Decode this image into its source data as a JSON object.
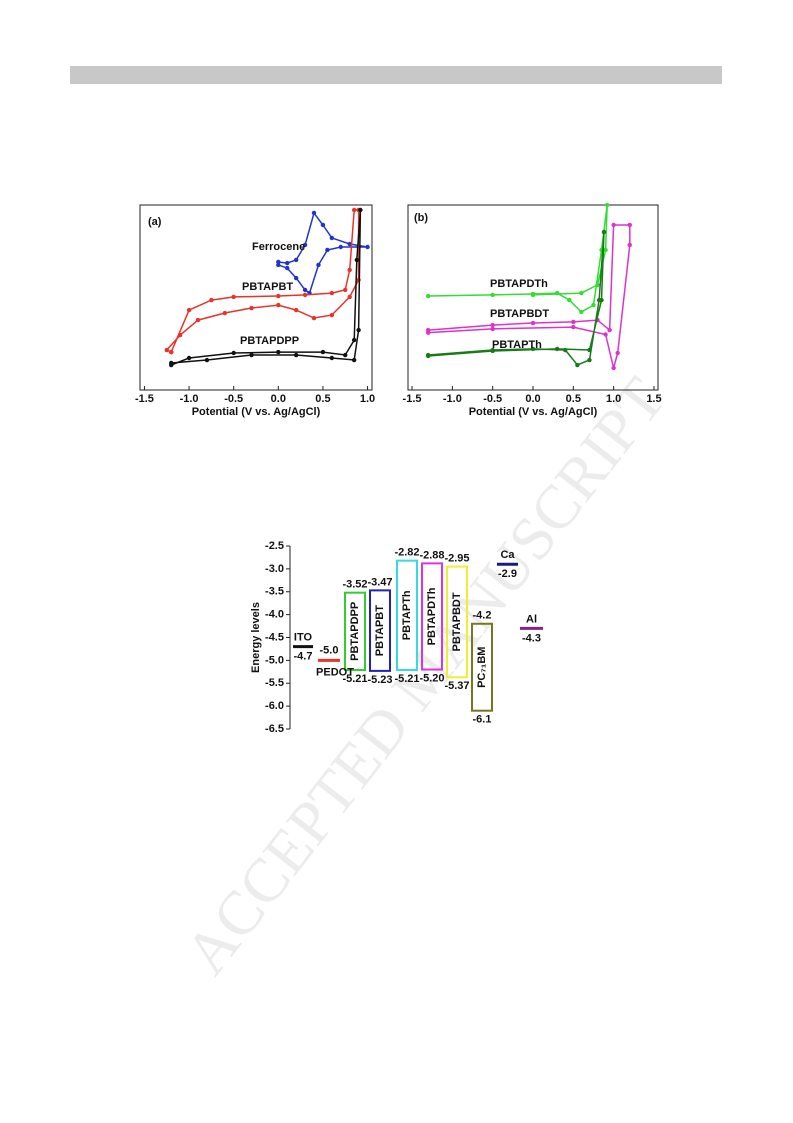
{
  "watermark": "ACCEPTED MANUSCRIPT",
  "chart_data": [
    {
      "type": "line",
      "panel_label": "(a)",
      "x_label": "Potential (V vs. Ag/AgCl)",
      "xlim": [
        -1.55,
        1.05
      ],
      "ylim": [
        0,
        100
      ],
      "xticks": [
        -1.5,
        {
          "value": -1,
          "label": "-1.0"
        },
        -0.5,
        {
          "value": 0,
          "label": "0.0"
        },
        0.5,
        {
          "value": 1,
          "label": "1.0"
        }
      ],
      "series": [
        {
          "name": "Ferrocene",
          "color": "#2233cc",
          "x": [
            0,
            0.1,
            0.2,
            0.3,
            0.4,
            0.5,
            0.6,
            0.8,
            1.0,
            0.9,
            0.7,
            0.55,
            0.45,
            0.35,
            0.3,
            0.2,
            0.1,
            0
          ],
          "values": [
            69.2,
            68.6,
            70.3,
            78.4,
            95.7,
            89.2,
            82.2,
            78.9,
            77.3,
            77.3,
            77.3,
            75.7,
            67.6,
            52.4,
            54.1,
            60.5,
            65.9,
            67.6
          ]
        },
        {
          "name": "PBTAPBT",
          "color": "#e8332a",
          "x": [
            -1.2,
            -1.0,
            -0.75,
            -0.5,
            0,
            0.3,
            0.6,
            0.75,
            0.8,
            0.85,
            0.9,
            0.9,
            0.8,
            0.6,
            0.4,
            0.2,
            0,
            -0.3,
            -0.6,
            -0.9,
            -1.1,
            -1.25,
            -1.2
          ],
          "values": [
            20.5,
            43.2,
            48.6,
            50.3,
            50.8,
            51.4,
            52.4,
            54.1,
            64.9,
            97.3,
            97.3,
            59.5,
            50.3,
            40.5,
            38.9,
            43.2,
            45.9,
            44.3,
            41.6,
            37.8,
            29.7,
            21.6,
            20.5
          ]
        },
        {
          "name": "PBTAPDPP",
          "color": "#111111",
          "x": [
            -1.2,
            -1.0,
            -0.5,
            0,
            0.5,
            0.75,
            0.85,
            0.88,
            0.92,
            0.9,
            0.85,
            0.6,
            0.2,
            -0.3,
            -0.8,
            -1.2
          ],
          "values": [
            13.5,
            17.3,
            20,
            20.5,
            20.5,
            18.9,
            27,
            70.3,
            97.3,
            32.4,
            16.2,
            17.3,
            18.9,
            18.9,
            16.2,
            14.6
          ]
        }
      ]
    },
    {
      "type": "line",
      "panel_label": "(b)",
      "x_label": "Potential (V vs. Ag/AgCl)",
      "xlim": [
        -1.55,
        1.55
      ],
      "ylim": [
        0,
        100
      ],
      "xticks": [
        -1.5,
        {
          "value": -1,
          "label": "-1.0"
        },
        -0.5,
        {
          "value": 0,
          "label": "0.0"
        },
        0.5,
        {
          "value": 1,
          "label": "1.0"
        },
        1.5
      ],
      "series": [
        {
          "name": "PBTAPDTh",
          "color": "#33dd33",
          "x": [
            -1.3,
            -0.5,
            0,
            0.3,
            0.45,
            0.6,
            0.75,
            0.85,
            0.92,
            0.9,
            0.8,
            0.6,
            0
          ],
          "values": [
            50.8,
            51.4,
            51.9,
            52.4,
            48.6,
            42.2,
            45.9,
            75.7,
            100,
            75.7,
            56.8,
            52.4,
            51.4
          ]
        },
        {
          "name": "PBTAPBDT",
          "color": "#dd33cc",
          "x": [
            -1.3,
            -0.5,
            0,
            0.5,
            0.8,
            0.95,
            1.0,
            1.2,
            1.2,
            1.05,
            1.0,
            0.9,
            0.5,
            -0.5,
            -1.3
          ],
          "values": [
            32.4,
            35.1,
            36.2,
            36.8,
            37.8,
            32.4,
            89.2,
            89.2,
            78.4,
            20,
            11.9,
            30,
            34,
            33,
            31
          ]
        },
        {
          "name": "PBTAPTh",
          "color": "#1a7a1a",
          "x": [
            -1.3,
            -0.5,
            0,
            0.4,
            0.55,
            0.7,
            0.82,
            0.88,
            0.85,
            0.7,
            0.3,
            -0.5,
            -1.3
          ],
          "values": [
            18.9,
            21.6,
            22.2,
            21.6,
            13.5,
            16.2,
            48.6,
            85.4,
            48.6,
            21.6,
            22.2,
            21.1,
            18.4
          ]
        }
      ]
    },
    {
      "type": "energy",
      "y_label": "Energy levels",
      "ylim": [
        -6.5,
        -2.5
      ],
      "yticks": [
        -2.5,
        {
          "value": -3,
          "label": "-3.0"
        },
        -3.5,
        {
          "value": -4,
          "label": "-4.0"
        },
        -4.5,
        {
          "value": -5,
          "label": "-5.0"
        },
        -5.5,
        {
          "value": -6,
          "label": "-6.0"
        },
        -6.5
      ],
      "series": [
        {
          "name": "PBTAPDPP",
          "color": "#33cc33",
          "values": [
            -3.52,
            -5.21
          ]
        },
        {
          "name": "PBTAPBT",
          "color": "#2222bb",
          "values": [
            -3.47,
            -5.23
          ]
        },
        {
          "name": "PBTAPTh",
          "color": "#33dddd",
          "values": [
            -2.82,
            -5.21
          ]
        },
        {
          "name": "PBTAPDTh",
          "color": "#dd33dd",
          "values": [
            -2.88,
            -5.2
          ],
          "value_labels": [
            "-2.88",
            "-5.20"
          ]
        },
        {
          "name": "PBTAPBDT",
          "color": "#eeee33",
          "values": [
            -2.95,
            -5.37
          ]
        },
        {
          "name": "PC₇₁BM",
          "color": "#777722",
          "values": [
            -4.2,
            -6.1
          ]
        }
      ],
      "levels": [
        {
          "name": "ITO",
          "color": "#111111",
          "values": [
            -4.7
          ]
        },
        {
          "name": "PEDOT",
          "color": "#e8332a",
          "values": [
            -5
          ],
          "value_labels": [
            "-5.0"
          ]
        },
        {
          "name": "Ca",
          "color": "#1a1a80",
          "values": [
            -2.9
          ]
        },
        {
          "name": "Al",
          "color": "#882288",
          "values": [
            -4.3
          ]
        }
      ]
    }
  ]
}
